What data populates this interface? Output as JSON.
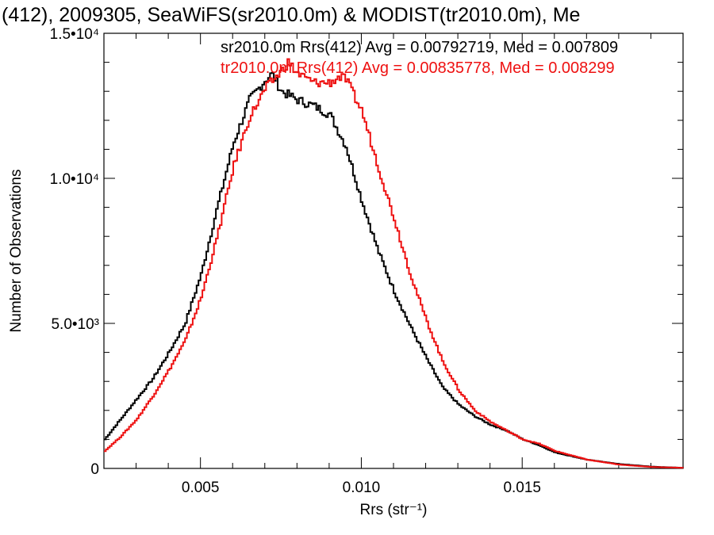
{
  "chart_data": {
    "type": "histogram",
    "title": "(412), 2009305, SeaWiFS(sr2010.0m) & MODIST(tr2010.0m), Me",
    "xlabel": "Rrs (str⁻¹)",
    "ylabel": "Number of Observations",
    "xlim": [
      0.002,
      0.02
    ],
    "ylim": [
      0,
      15000
    ],
    "x_ticks": [
      {
        "value": 0.005,
        "label": "0.005"
      },
      {
        "value": 0.01,
        "label": "0.010"
      },
      {
        "value": 0.015,
        "label": "0.015"
      }
    ],
    "y_ticks": [
      {
        "value": 0,
        "label": "0"
      },
      {
        "value": 5000,
        "label": "5.0•10³"
      },
      {
        "value": 10000,
        "label": "1.0•10⁴"
      },
      {
        "value": 15000,
        "label": "1.5•10⁴"
      }
    ],
    "grid": false,
    "series": [
      {
        "name": "sr2010.0m Rrs(412) Avg = 0.00792719, Med = 0.007809",
        "color": "#000000",
        "x": [
          0.002,
          0.0025,
          0.003,
          0.0035,
          0.004,
          0.0045,
          0.005,
          0.0055,
          0.006,
          0.0065,
          0.007,
          0.0072,
          0.0075,
          0.008,
          0.0085,
          0.009,
          0.0095,
          0.01,
          0.0105,
          0.011,
          0.0115,
          0.012,
          0.0125,
          0.013,
          0.0135,
          0.014,
          0.0145,
          0.015,
          0.0155,
          0.016,
          0.017,
          0.018,
          0.019,
          0.02
        ],
        "y": [
          1000,
          1700,
          2400,
          3100,
          4000,
          5000,
          6700,
          9000,
          11200,
          12700,
          13400,
          13600,
          13000,
          12700,
          12500,
          12200,
          11100,
          9200,
          7500,
          6100,
          4900,
          3800,
          2800,
          2200,
          1800,
          1500,
          1300,
          1000,
          800,
          550,
          300,
          150,
          60,
          20
        ]
      },
      {
        "name": "tr2010.0m Rrs(412) Avg = 0.00835778, Med = 0.008299",
        "color": "#ee1111",
        "x": [
          0.002,
          0.0025,
          0.003,
          0.0035,
          0.004,
          0.0045,
          0.005,
          0.0055,
          0.006,
          0.0065,
          0.007,
          0.0075,
          0.0077,
          0.008,
          0.0085,
          0.009,
          0.0093,
          0.0095,
          0.01,
          0.0105,
          0.011,
          0.0115,
          0.012,
          0.0125,
          0.013,
          0.0135,
          0.014,
          0.0145,
          0.015,
          0.0155,
          0.016,
          0.017,
          0.018,
          0.019,
          0.02
        ],
        "y": [
          600,
          1100,
          1700,
          2500,
          3400,
          4400,
          5900,
          8000,
          10400,
          12100,
          13100,
          13700,
          14000,
          13600,
          13300,
          13300,
          13500,
          13400,
          12300,
          10400,
          8600,
          6700,
          5100,
          3700,
          2700,
          2000,
          1600,
          1300,
          1000,
          850,
          600,
          300,
          130,
          50,
          20
        ]
      }
    ],
    "stats": [
      {
        "text": "sr2010.0m Rrs(412) Avg = 0.00792719, Med = 0.007809",
        "color": "#000000"
      },
      {
        "text": "tr2010.0m Rrs(412) Avg = 0.00835778, Med = 0.008299",
        "color": "#ee1111"
      }
    ]
  }
}
